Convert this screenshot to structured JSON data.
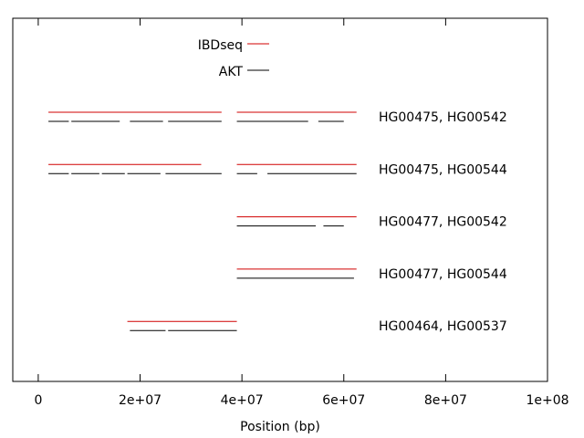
{
  "chart_data": {
    "type": "line",
    "xlabel": "Position (bp)",
    "ylabel": "",
    "xlim": [
      -5000000,
      100000000
    ],
    "x_ticks": [
      "0",
      "2e+07",
      "4e+07",
      "6e+07",
      "8e+07",
      "1e+08"
    ],
    "grid": false,
    "legend_placement": "top-center",
    "series": [
      {
        "name": "IBDseq",
        "color": "#d00000"
      },
      {
        "name": "AKT",
        "color": "#000000"
      }
    ],
    "rows": [
      {
        "label": "HG00475, HG00542",
        "IBDseq": [
          [
            2000000,
            36000000
          ],
          [
            39000000,
            62500000
          ]
        ],
        "AKT": [
          [
            2000000,
            6000000
          ],
          [
            6500000,
            16000000
          ],
          [
            18000000,
            24500000
          ],
          [
            25500000,
            36000000
          ],
          [
            39000000,
            53000000
          ],
          [
            55000000,
            60000000
          ]
        ]
      },
      {
        "label": "HG00475, HG00544",
        "IBDseq": [
          [
            2000000,
            32000000
          ],
          [
            39000000,
            62500000
          ]
        ],
        "AKT": [
          [
            2000000,
            6000000
          ],
          [
            6500000,
            12000000
          ],
          [
            12500000,
            17000000
          ],
          [
            17500000,
            24000000
          ],
          [
            25000000,
            36000000
          ],
          [
            39000000,
            43000000
          ],
          [
            45000000,
            62500000
          ]
        ]
      },
      {
        "label": "HG00477, HG00542",
        "IBDseq": [
          [
            39000000,
            62500000
          ]
        ],
        "AKT": [
          [
            39000000,
            54500000
          ],
          [
            56000000,
            60000000
          ]
        ]
      },
      {
        "label": "HG00477, HG00544",
        "IBDseq": [
          [
            39000000,
            62500000
          ]
        ],
        "AKT": [
          [
            39000000,
            62000000
          ]
        ]
      },
      {
        "label": "HG00464, HG00537",
        "IBDseq": [
          [
            17500000,
            39000000
          ]
        ],
        "AKT": [
          [
            18000000,
            25000000
          ],
          [
            25500000,
            39000000
          ]
        ]
      }
    ]
  }
}
